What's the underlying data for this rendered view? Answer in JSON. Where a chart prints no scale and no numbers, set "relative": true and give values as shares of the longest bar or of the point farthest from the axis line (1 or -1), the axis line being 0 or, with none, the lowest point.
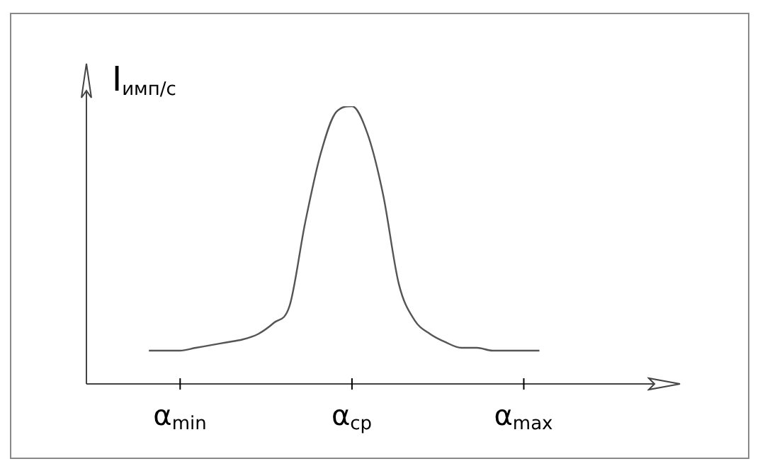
{
  "chart_data": {
    "type": "line",
    "relative": true,
    "ylabel": "I$_{имп/с}$",
    "categories": [
      null,
      null,
      null,
      null,
      null,
      null,
      "α$_{min}$",
      null,
      null,
      null,
      null,
      null,
      null,
      null,
      null,
      null,
      null,
      "α$_{cp}$",
      null,
      null,
      null,
      null,
      null,
      null,
      null,
      null,
      null,
      null,
      "α$_{max}$",
      null,
      null,
      null,
      null,
      null,
      null,
      null,
      null,
      null,
      null
    ],
    "series": [
      {
        "color": "#555555",
        "values": [
          null,
          null,
          null,
          null,
          0.12,
          0.12,
          0.12,
          0.13,
          0.14,
          0.15,
          0.16,
          0.18,
          0.22,
          0.28,
          0.58,
          0.83,
          0.98,
          1.0,
          0.9,
          0.68,
          0.36,
          0.23,
          0.18,
          0.15,
          0.13,
          0.13,
          0.12,
          0.12,
          0.12,
          0.12,
          null,
          null,
          null,
          null,
          null,
          null,
          null,
          null,
          null
        ]
      }
    ],
    "legend": false,
    "grid": false
  }
}
